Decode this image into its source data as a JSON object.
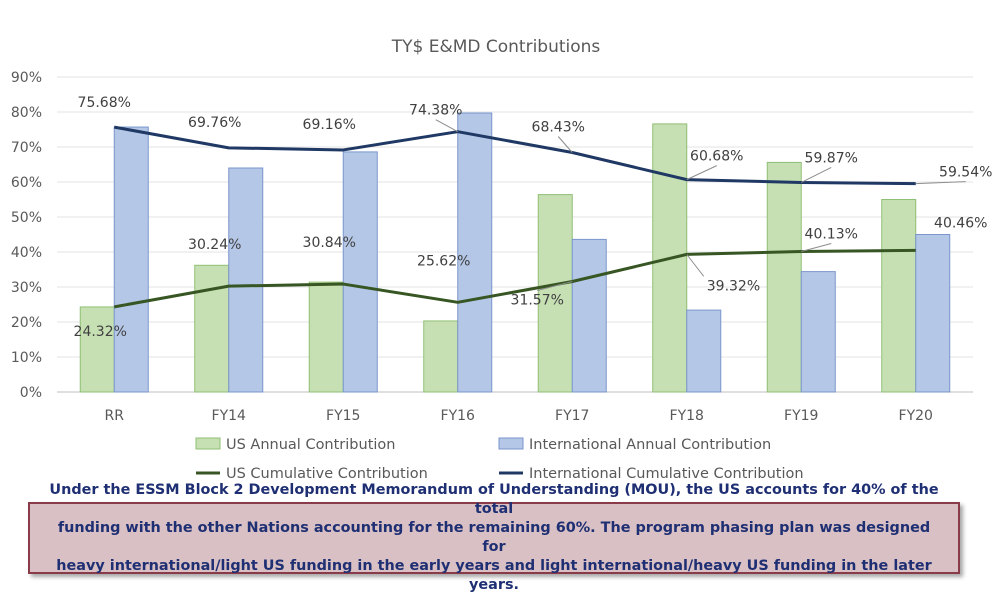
{
  "chart_data": {
    "type": "bar",
    "title": "TY$ E&MD Contributions",
    "categories": [
      "RR",
      "FY14",
      "FY15",
      "FY16",
      "FY17",
      "FY18",
      "FY19",
      "FY20"
    ],
    "ylim": [
      0,
      90
    ],
    "yticks": [
      "0%",
      "10%",
      "20%",
      "30%",
      "40%",
      "50%",
      "60%",
      "70%",
      "80%",
      "90%"
    ],
    "grid": true,
    "legend_position": "bottom",
    "series": [
      {
        "name": "US Annual Contribution",
        "kind": "bar",
        "color": "#c6e0b4",
        "stroke": "#8fbf73",
        "values": [
          24.3,
          36.2,
          31.4,
          20.3,
          56.4,
          76.6,
          65.6,
          55.0
        ]
      },
      {
        "name": "International Annual Contribution",
        "kind": "bar",
        "color": "#b4c7e7",
        "stroke": "#7a96cc",
        "values": [
          75.7,
          64.0,
          68.6,
          79.7,
          43.6,
          23.4,
          34.4,
          45.0
        ]
      },
      {
        "name": "US Cumulative Contribution",
        "kind": "line",
        "color": "#375623",
        "values": [
          24.32,
          30.24,
          30.84,
          25.62,
          31.57,
          39.32,
          40.13,
          40.46
        ],
        "labels": [
          "24.32%",
          "30.24%",
          "30.84%",
          "25.62%",
          "31.57%",
          "39.32%",
          "40.13%",
          "40.46%"
        ]
      },
      {
        "name": "International Cumulative Contribution",
        "kind": "line",
        "color": "#1f3864",
        "values": [
          75.68,
          69.76,
          69.16,
          74.38,
          68.43,
          60.68,
          59.87,
          59.54
        ],
        "labels": [
          "75.68%",
          "69.76%",
          "69.16%",
          "74.38%",
          "68.43%",
          "60.68%",
          "59.87%",
          "59.54%"
        ]
      }
    ]
  },
  "note": {
    "line1": "Under the ESSM Block 2 Development Memorandum of Understanding (MOU), the US accounts for 40% of the total",
    "line2": "funding with the other Nations accounting for the remaining 60%. The program phasing plan was designed for",
    "line3": "heavy international/light US funding in the early years and light international/heavy US funding in the later years."
  }
}
